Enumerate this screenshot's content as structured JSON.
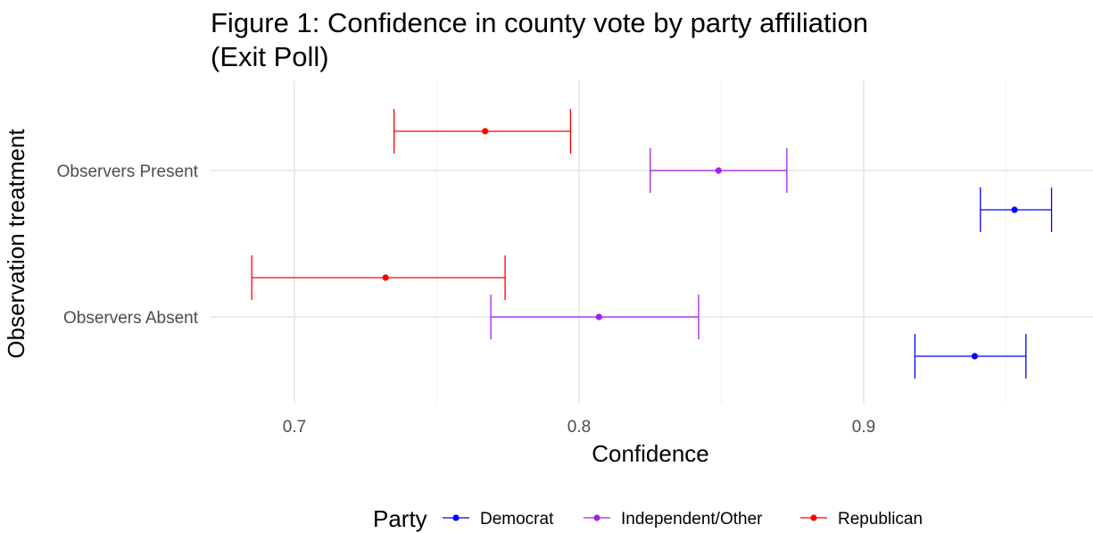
{
  "chart_data": {
    "type": "errorbar",
    "title_lines": [
      "Figure 1: Confidence in county vote by party affiliation",
      "(Exit Poll)"
    ],
    "xlabel": "Confidence",
    "ylabel": "Observation treatment",
    "xlim": [
      0.67,
      0.97
    ],
    "x_ticks": [
      0.7,
      0.8,
      0.9
    ],
    "x_tick_labels": [
      "0.7",
      "0.8",
      "0.9"
    ],
    "categories": [
      "Observers Present",
      "Observers Absent"
    ],
    "grid": true,
    "legend": {
      "title": "Party",
      "position": "bottom"
    },
    "series": [
      {
        "name": "Democrat",
        "color": "#0000ff",
        "points": [
          {
            "category": "Observers Present",
            "estimate": 0.953,
            "lower": 0.941,
            "upper": 0.966
          },
          {
            "category": "Observers Absent",
            "estimate": 0.939,
            "lower": 0.918,
            "upper": 0.957
          }
        ]
      },
      {
        "name": "Independent/Other",
        "color": "#a020f0",
        "points": [
          {
            "category": "Observers Present",
            "estimate": 0.849,
            "lower": 0.825,
            "upper": 0.873
          },
          {
            "category": "Observers Absent",
            "estimate": 0.807,
            "lower": 0.769,
            "upper": 0.842
          }
        ]
      },
      {
        "name": "Republican",
        "color": "#ff0000",
        "points": [
          {
            "category": "Observers Present",
            "estimate": 0.767,
            "lower": 0.735,
            "upper": 0.797
          },
          {
            "category": "Observers Absent",
            "estimate": 0.732,
            "lower": 0.685,
            "upper": 0.774
          }
        ]
      }
    ]
  }
}
